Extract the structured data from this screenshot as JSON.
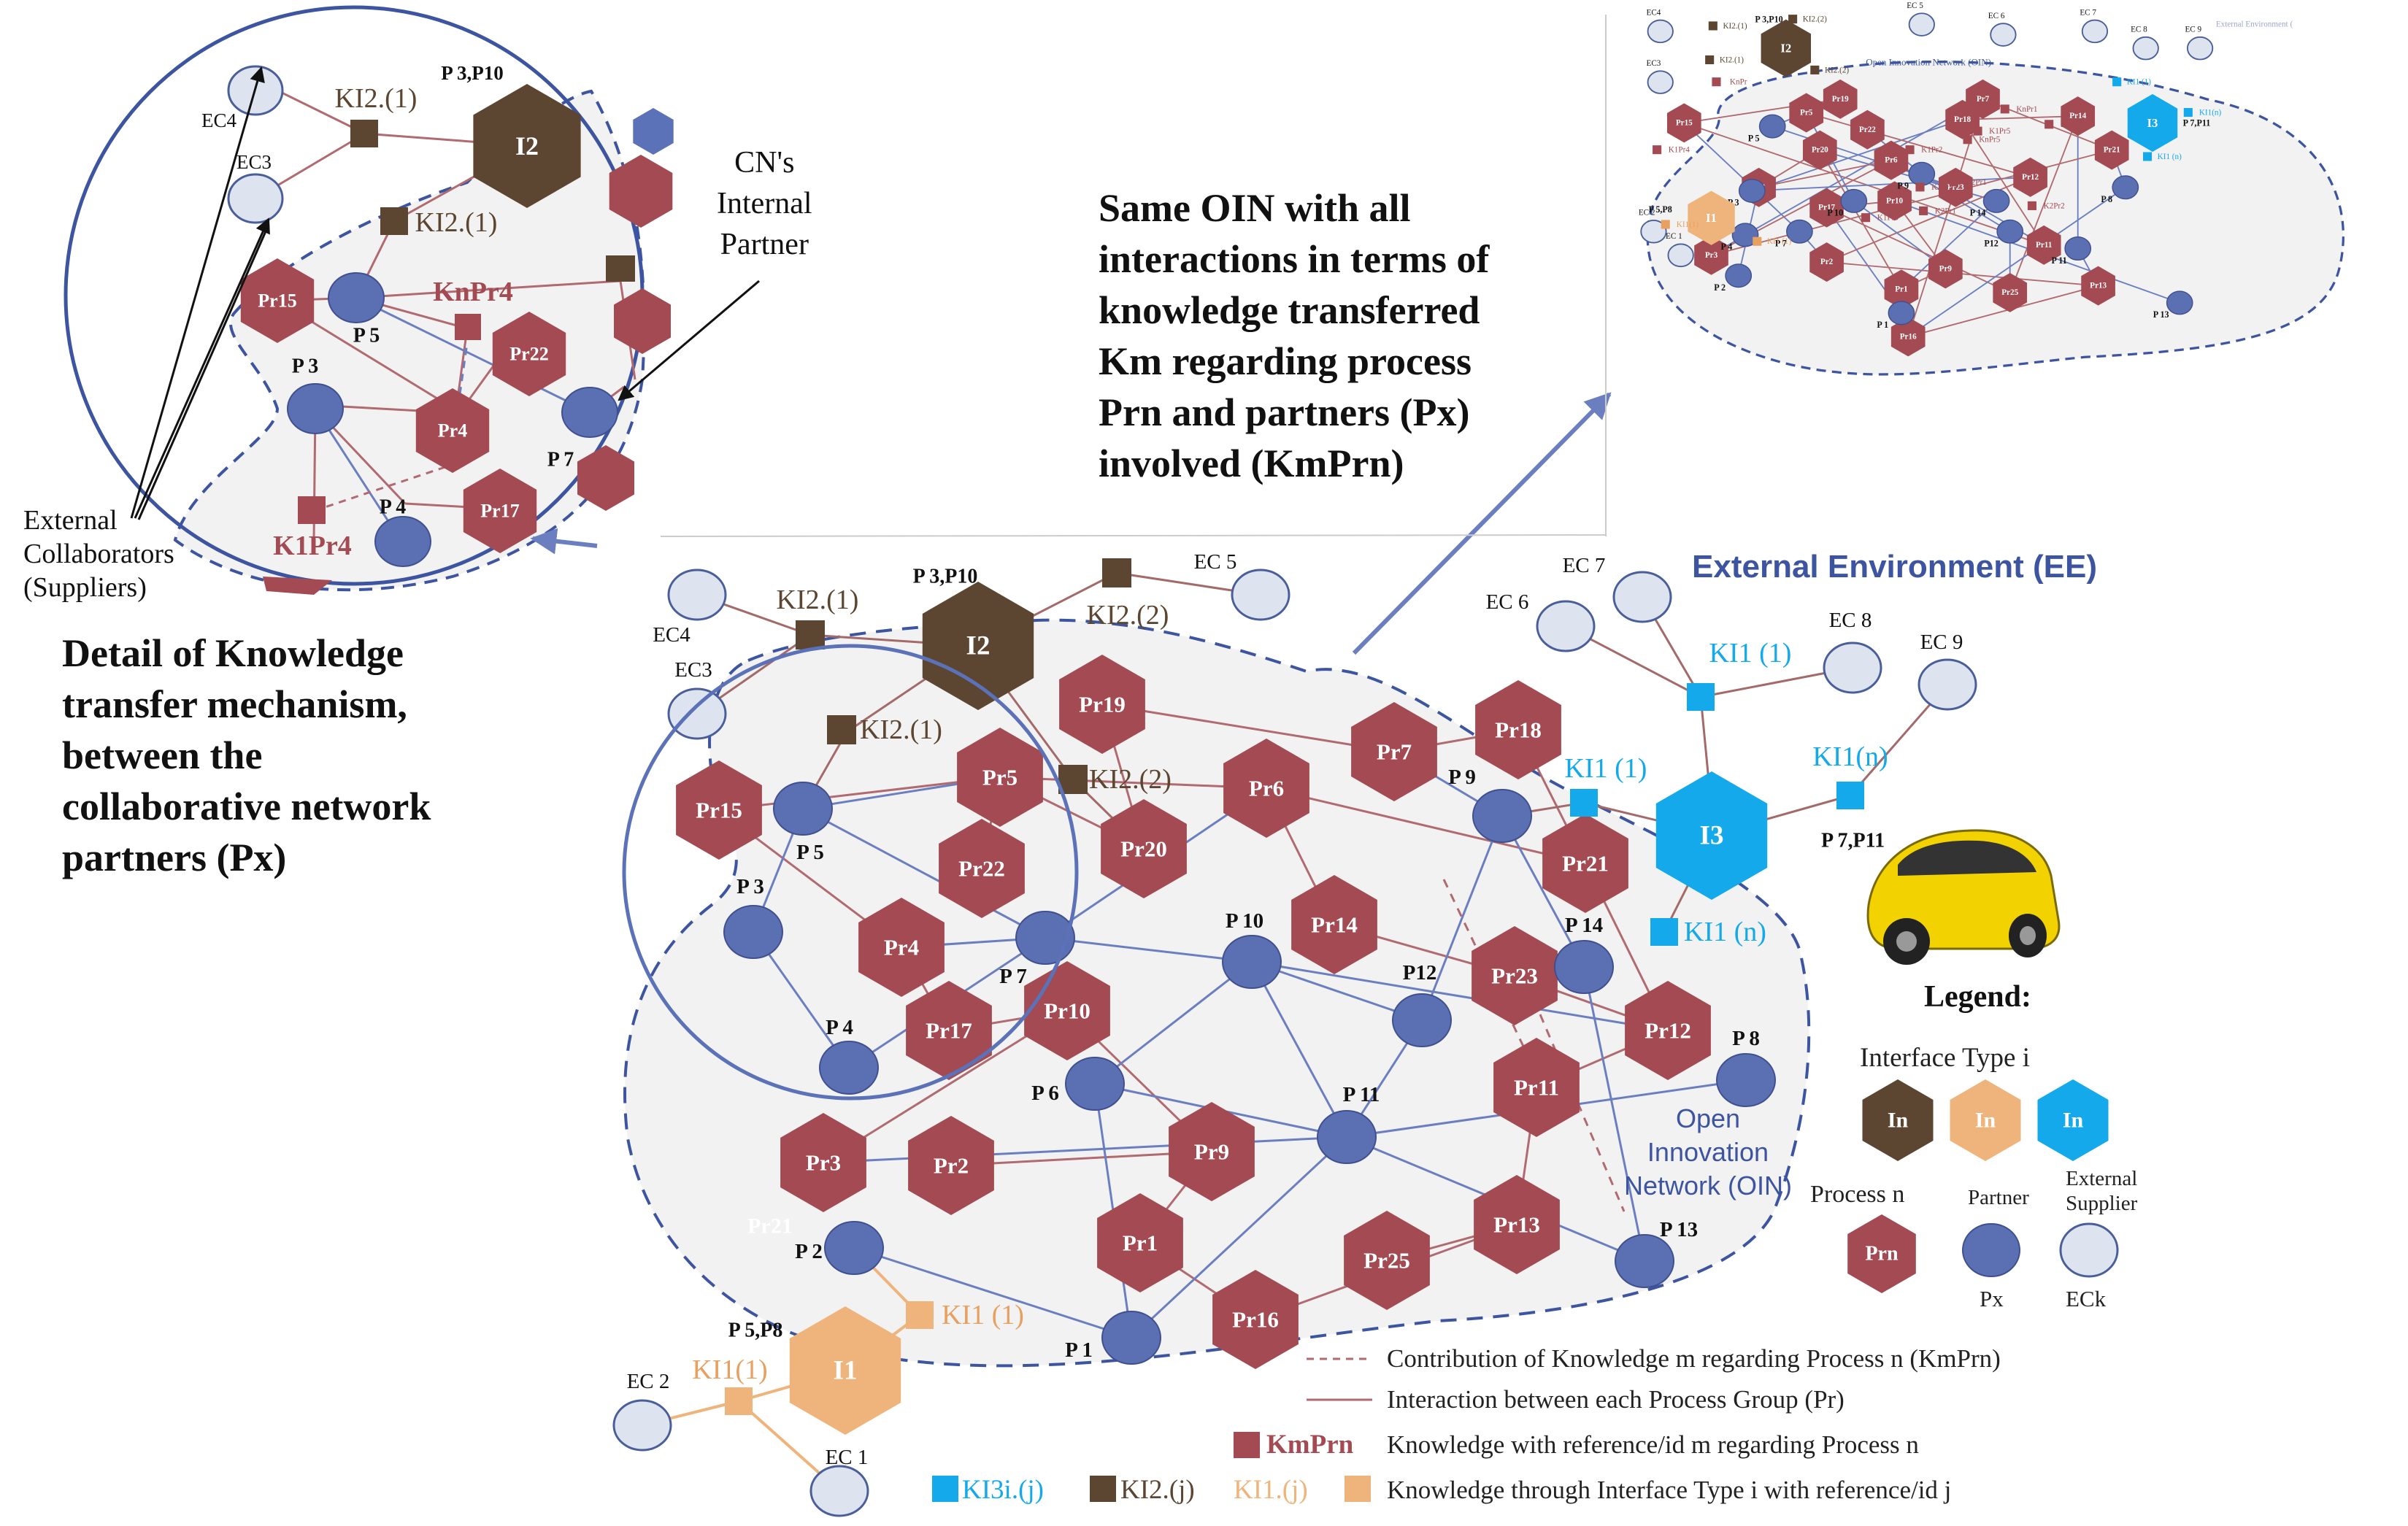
{
  "annotations": {
    "detail_title": [
      "Detail of Knowledge",
      "transfer mechanism,",
      "between the",
      "collaborative network",
      "partners (Px)"
    ],
    "same_oin": [
      "Same OIN  with all",
      "interactions in terms of",
      "knowledge transferred",
      "Km regarding process",
      "Prn and partners (Px)",
      "involved (KmPrn)"
    ],
    "cn_partner": [
      "CN's",
      "Internal",
      "Partner"
    ],
    "external_collab": [
      "External",
      "Collaborators",
      "(Suppliers)"
    ],
    "external_environment": "External Environment (EE)",
    "oin_label": [
      "Open",
      "Innovation",
      "Network (OIN)"
    ],
    "thumb_ee": "External Environment (",
    "thumb_oin": "Open Innovation Network (OIN)"
  },
  "legend": {
    "title": "Legend:",
    "interface_type": "Interface Type i",
    "interface_icon": "In",
    "process": "Process  n",
    "partner": "Partner",
    "external_supplier": [
      "External",
      "Supplier"
    ],
    "process_icon": "Prn",
    "partner_sub": "Px",
    "supplier_sub": "ECk",
    "contribution": "Contribution of Knowledge m regarding Process n  (KmPrn)",
    "interaction": "Interaction between each Process Group (Pr)",
    "kmprn_label": "KmPrn",
    "knowledge_ref": "Knowledge with reference/id  m regarding Process n",
    "ki3": "KI3i.(j)",
    "ki2": "KI2.(j)",
    "ki1": "KI1.(j)",
    "knowledge_interface": "Knowledge through Interface Type i with reference/id  j"
  },
  "colors": {
    "process": "#a34a52",
    "partner": "#5b6fb3",
    "interface_2": "#5c4631",
    "interface_1": "#efb47c",
    "interface_3": "#13a9eb",
    "boundary": "#3d55a0",
    "label_dark": "#5c4631",
    "label_orange": "#e8a060",
    "label_blue": "#13a9eb",
    "process_link": "#b06a70",
    "partner_link": "#6b7fc0"
  },
  "diagram": {
    "processes": [
      "Pr19",
      "Pr7",
      "Pr18",
      "Pr15",
      "Pr5",
      "Pr6",
      "Pr22",
      "Pr20",
      "Pr21",
      "Pr4",
      "Pr14",
      "Pr23",
      "Pr17",
      "Pr10",
      "Pr12",
      "Pr11",
      "Pr3",
      "Pr2",
      "Pr9",
      "Pr1",
      "Pr13",
      "Pr25",
      "Pr16"
    ],
    "partners": [
      "P 5",
      "P 9",
      "P 3",
      "P 7",
      "P 10",
      "P 14",
      "P12",
      "P 4",
      "P 8",
      "P 6",
      "P 11",
      "P 2",
      "P 13",
      "P 1"
    ],
    "suppliers": [
      "EC4",
      "EC3",
      "EC 5",
      "EC 7",
      "EC 6",
      "EC 8",
      "EC 9",
      "EC 2",
      "EC 1"
    ],
    "interfaces": {
      "i2": "I2",
      "i3": "I3",
      "i1": "I1"
    },
    "interface_labels": {
      "i2": "P 3,P10",
      "i3": "P 7,P11",
      "i1": "P 5,P8"
    },
    "knowledge_labels": [
      "KI2.(1)",
      "KI2.(2)",
      "KI2.(1)",
      "KI2.(2)",
      "KI1 (1)",
      "KI1 (n)",
      "KI1(n)",
      "KI1 (1)",
      "KI1 (1)",
      "KI1(1)"
    ],
    "faded_label": "Pr21"
  },
  "detail": {
    "processes": [
      "Pr15",
      "Pr22",
      "Pr4",
      "Pr17"
    ],
    "partners": [
      "P 5",
      "P 3",
      "P 4",
      "P 7"
    ],
    "suppliers": [
      "EC4",
      "EC3"
    ],
    "interface": "I2",
    "interface_label": "P 3,P10",
    "labels": [
      "KI2.(1)",
      "KI2.(1)",
      "KnPr4",
      "K1Pr4"
    ]
  },
  "thumb": {
    "processes": [
      "Pr19",
      "Pr18",
      "Pr7",
      "Pr15",
      "Pr5",
      "Pr22",
      "Pr20",
      "Pr6",
      "Pr14",
      "Pr21",
      "Pr4",
      "Pr17",
      "Pr10",
      "Pr23",
      "Pr12",
      "Pr3",
      "Pr2",
      "Pr9",
      "Pr11",
      "Pr1",
      "Pr25",
      "Pr13",
      "Pr16"
    ],
    "partners": [
      "P 5",
      "P 3",
      "P 4",
      "P 7",
      "P 10",
      "P 9",
      "P 14",
      "P12",
      "P 11",
      "P 8",
      "P 2",
      "P 1",
      "P 13"
    ],
    "suppliers": [
      "EC4",
      "EC3",
      "EC 5",
      "EC 6",
      "EC 7",
      "EC 8",
      "EC 9",
      "EC 2",
      "EC 1"
    ],
    "interfaces": [
      "I2",
      "I3",
      "I1"
    ],
    "interface_labels": [
      "P 3,P10",
      "P 7,P11",
      "P 5,P8"
    ],
    "labels": [
      "KI2.(1)",
      "KI2.(2)",
      "KI2.(1)",
      "KI2.(2)",
      "KnPr5",
      "K1Pr4",
      "K2Pr1",
      "K1Pr1",
      "K1Pr5",
      "K1Pr2",
      "K2Pr3",
      "K1Pr3",
      "K2Pr1",
      "KnPr1",
      "K2Pr2",
      "KI1 (1)",
      "KI1(1)",
      "KI1 (n)",
      "KI1(n)",
      "KI1 (1)",
      "KnPr"
    ]
  }
}
